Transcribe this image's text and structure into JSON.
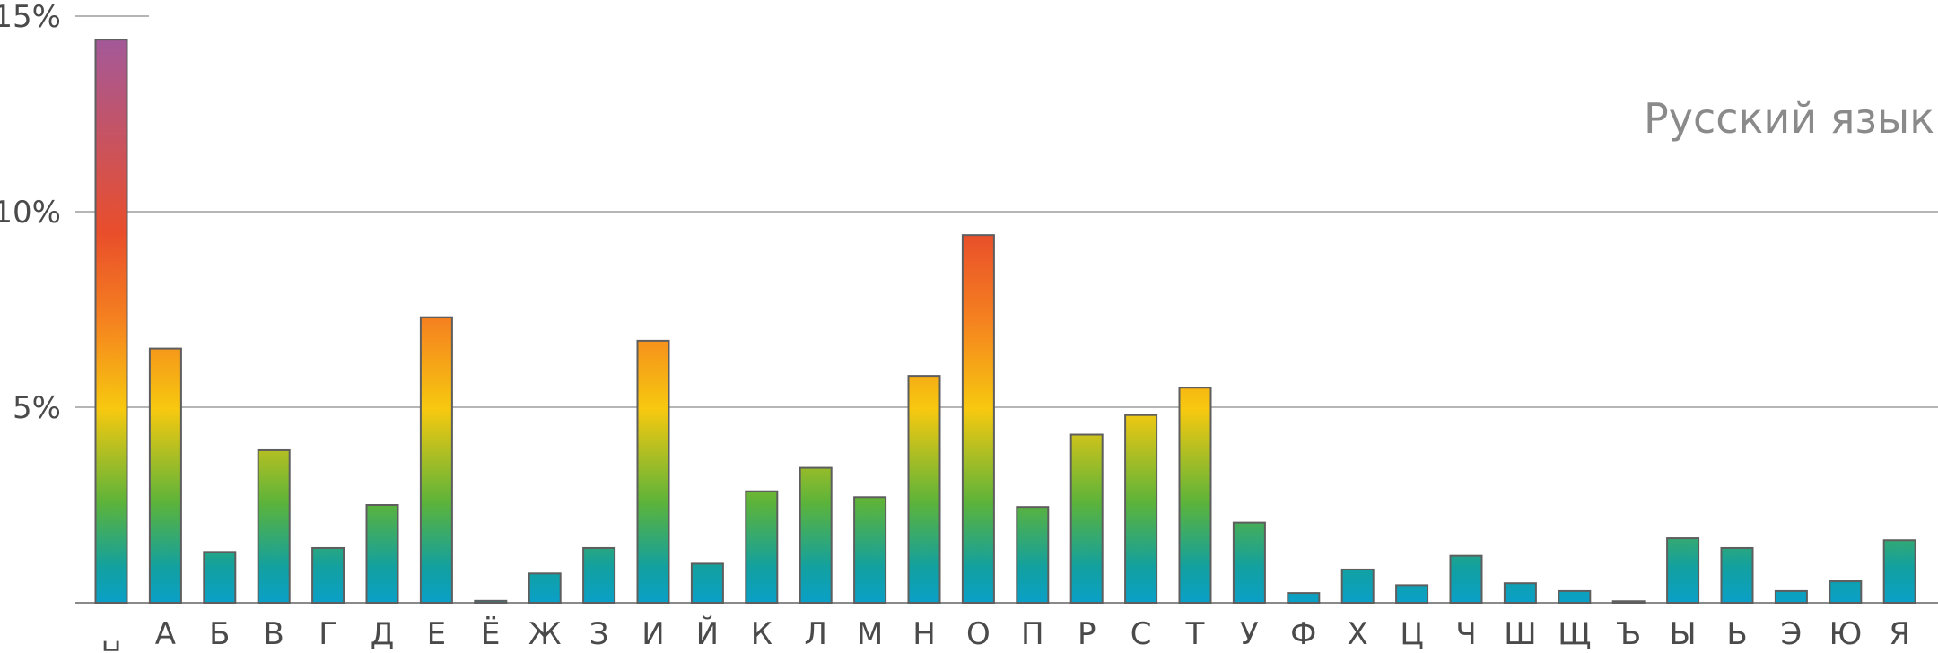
{
  "chart_data": {
    "type": "bar",
    "title": "Русский язык",
    "xlabel": "",
    "ylabel": "",
    "ylim": [
      0,
      15
    ],
    "yticks": [
      {
        "value": 5,
        "label": "5%"
      },
      {
        "value": 10,
        "label": "10%"
      },
      {
        "value": 15,
        "label": "15%"
      }
    ],
    "grid": true,
    "categories": [
      "␣",
      "А",
      "Б",
      "В",
      "Г",
      "Д",
      "Е",
      "Ё",
      "Ж",
      "З",
      "И",
      "Й",
      "К",
      "Л",
      "М",
      "Н",
      "О",
      "П",
      "Р",
      "С",
      "Т",
      "У",
      "Ф",
      "Х",
      "Ц",
      "Ч",
      "Ш",
      "Щ",
      "Ъ",
      "Ы",
      "Ь",
      "Э",
      "Ю",
      "Я"
    ],
    "values": [
      14.4,
      6.5,
      1.3,
      3.9,
      1.4,
      2.5,
      7.3,
      0.05,
      0.75,
      1.4,
      6.7,
      1.0,
      2.85,
      3.45,
      2.7,
      5.8,
      9.4,
      2.45,
      4.3,
      4.8,
      5.5,
      2.05,
      0.25,
      0.85,
      0.45,
      1.2,
      0.5,
      0.3,
      0.04,
      1.65,
      1.4,
      0.3,
      0.55,
      1.6
    ]
  },
  "colors": {
    "gradient": [
      "#0aa0c8",
      "#12a0a0",
      "#5cb33a",
      "#f7c90f",
      "#f5821f",
      "#e94e2b",
      "#9b5aa6"
    ],
    "grid": "#b5b5b5",
    "bar_border": "#5e5e5e"
  }
}
